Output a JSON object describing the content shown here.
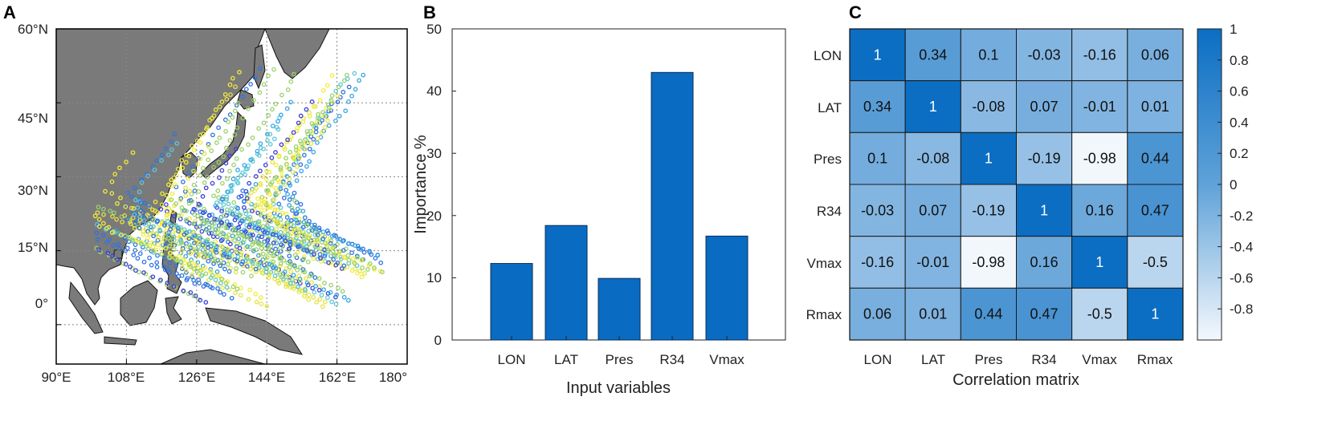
{
  "panels": {
    "a": "A",
    "b": "B",
    "c": "C"
  },
  "colors": {
    "land": "#7a7a7a",
    "ocean": "#ffffff",
    "bar": "#0a6bc2",
    "heat_high": "#0b6ec3",
    "heat_low": "#f4f8fd",
    "track_palette": [
      "#3b3fd8",
      "#2f74e0",
      "#35a6e6",
      "#5fc8d9",
      "#e6e445",
      "#f3ec3a",
      "#9bd36a"
    ]
  },
  "chart_data": [
    {
      "type": "scatter",
      "title": "",
      "description_label": "Typhoon tracks over western North Pacific",
      "xticks": [
        "90°E",
        "108°E",
        "126°E",
        "144°E",
        "162°E",
        "180°"
      ],
      "xtick_values": [
        90,
        108,
        126,
        144,
        162,
        180
      ],
      "yticks": [
        "0°",
        "15°N",
        "30°N",
        "45°N",
        "60°N"
      ],
      "ytick_values": [
        0,
        15,
        30,
        45,
        60
      ],
      "xlim": [
        90,
        180
      ],
      "ylim": [
        -8,
        60
      ]
    },
    {
      "type": "bar",
      "categories": [
        "LON",
        "LAT",
        "Pres",
        "R34",
        "Vmax"
      ],
      "values": [
        12.3,
        18.4,
        9.9,
        43.0,
        16.7
      ],
      "title": "",
      "xlabel": "Input variables",
      "ylabel": "Importance %",
      "ylim": [
        0,
        50
      ],
      "yticks": [
        "0",
        "10",
        "20",
        "30",
        "40",
        "50"
      ]
    },
    {
      "type": "heatmap",
      "xlabel": "Correlation matrix",
      "row_labels": [
        "LON",
        "LAT",
        "Pres",
        "R34",
        "Vmax",
        "Rmax"
      ],
      "col_labels": [
        "LON",
        "LAT",
        "Pres",
        "R34",
        "Vmax",
        "Rmax"
      ],
      "cells": [
        [
          "1",
          "0.34",
          "0.1",
          "-0.03",
          "-0.16",
          "0.06"
        ],
        [
          "0.34",
          "1",
          "-0.08",
          "0.07",
          "-0.01",
          "0.01"
        ],
        [
          "0.1",
          "-0.08",
          "1",
          "-0.19",
          "-0.98",
          "0.44"
        ],
        [
          "-0.03",
          "0.07",
          "-0.19",
          "1",
          "0.16",
          "0.47"
        ],
        [
          "-0.16",
          "-0.01",
          "-0.98",
          "0.16",
          "1",
          "-0.5"
        ],
        [
          "0.06",
          "0.01",
          "0.44",
          "0.47",
          "-0.5",
          "1"
        ]
      ],
      "colorbar_ticks": [
        "1",
        "0.8",
        "0.6",
        "0.4",
        "0.2",
        "0",
        "-0.2",
        "-0.4",
        "-0.6",
        "-0.8"
      ],
      "colorbar_tick_values": [
        1,
        0.8,
        0.6,
        0.4,
        0.2,
        0,
        -0.2,
        -0.4,
        -0.6,
        -0.8
      ],
      "clim": [
        -1,
        1
      ]
    }
  ]
}
